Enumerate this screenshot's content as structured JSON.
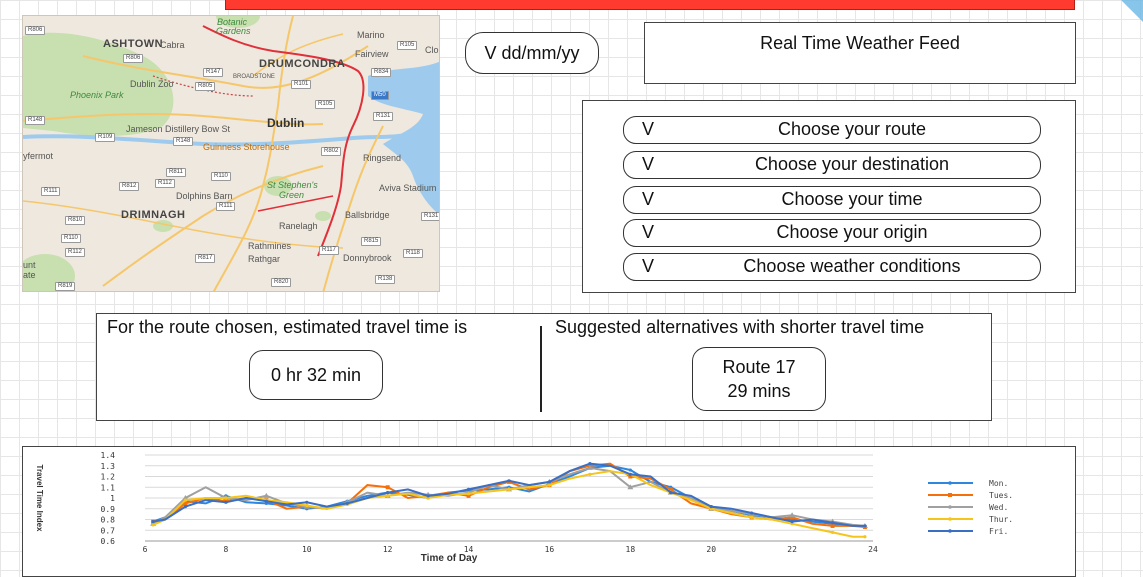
{
  "date_picker": {
    "value": "V dd/mm/yy"
  },
  "weather": {
    "title": "Real Time Weather Feed"
  },
  "selectors": [
    {
      "prefix": "V",
      "label": "Choose your route"
    },
    {
      "prefix": "V",
      "label": "Choose your destination"
    },
    {
      "prefix": "V",
      "label": "Choose your time"
    },
    {
      "prefix": "V",
      "label": "Choose your origin"
    },
    {
      "prefix": "V",
      "label": "Choose weather conditions"
    }
  ],
  "travel": {
    "estimate_label": "For the route chosen, estimated travel time is",
    "estimate_value": "0 hr 32 min",
    "alternatives_label": "Suggested alternatives with shorter travel time",
    "alternative_route": "Route 17",
    "alternative_time": "29 mins"
  },
  "map": {
    "labels": {
      "ashtown": "ASHTOWN",
      "cabra": "Cabra",
      "botanic": "Botanic",
      "gardens": "Gardens",
      "marino": "Marino",
      "fairview": "Fairview",
      "drumcondra": "DRUMCONDRA",
      "dublin_zoo": "Dublin Zoo",
      "phoenix_park": "Phoenix Park",
      "broadstone": "BROADSTONE",
      "dublin": "Dublin",
      "jameson": "Jameson Distillery Bow St",
      "guinness": "Guinness Storehouse",
      "ringsend": "Ringsend",
      "yfermot": "yfermot",
      "st_stephens": "St Stephen's",
      "green": "Green",
      "aviva": "Aviva Stadium",
      "dolphins_barn": "Dolphins Barn",
      "drimnagh": "DRIMNAGH",
      "ranelagh": "Ranelagh",
      "ballsbridge": "Ballsbridge",
      "rathmines": "Rathmines",
      "rathgar": "Rathgar",
      "donnybrook": "Donnybrook",
      "unt": "unt",
      "ate": "ate",
      "clon": "Clon"
    },
    "shields": [
      "R806",
      "R806",
      "R147",
      "R805",
      "R101",
      "R105",
      "R834",
      "M50",
      "R131",
      "R109",
      "R148",
      "R148",
      "R802",
      "R811",
      "R110",
      "R812",
      "R111",
      "R112",
      "R111",
      "R810",
      "R110",
      "R112",
      "R817",
      "R117",
      "R815",
      "R118",
      "R138",
      "R820",
      "R819",
      "R131",
      "R105"
    ]
  },
  "chart_data": {
    "type": "line",
    "title": "",
    "xlabel": "Time of Day",
    "ylabel": "Travel Time Index",
    "xlim": [
      6,
      24
    ],
    "ylim": [
      0.6,
      1.4
    ],
    "xticks": [
      6,
      8,
      10,
      12,
      14,
      16,
      18,
      20,
      22,
      24
    ],
    "yticks": [
      0.6,
      0.7,
      0.8,
      0.9,
      1,
      1.1,
      1.2,
      1.3,
      1.4
    ],
    "legend_position": "right",
    "grid": true,
    "series": [
      {
        "name": "Mon.",
        "color": "#2e86de",
        "x": [
          6.2,
          6.5,
          7,
          7.5,
          8,
          8.5,
          9,
          9.5,
          10,
          10.5,
          11,
          11.5,
          12,
          12.5,
          13,
          13.5,
          14,
          14.5,
          15,
          15.5,
          16,
          16.5,
          17,
          17.5,
          18,
          18.5,
          19,
          19.5,
          20,
          20.5,
          21,
          21.5,
          22,
          22.5,
          23,
          23.5,
          23.8
        ],
        "y": [
          0.78,
          0.82,
          0.97,
          0.95,
          1.02,
          0.96,
          0.95,
          0.93,
          0.9,
          0.92,
          0.97,
          1.02,
          1.05,
          1.03,
          1.0,
          1.05,
          1.07,
          1.08,
          1.1,
          1.06,
          1.13,
          1.2,
          1.28,
          1.3,
          1.26,
          1.15,
          1.1,
          1.0,
          0.92,
          0.88,
          0.84,
          0.82,
          0.8,
          0.78,
          0.76,
          0.74,
          0.74
        ]
      },
      {
        "name": "Tues.",
        "color": "#f5700a",
        "x": [
          6.2,
          6.5,
          7,
          7.5,
          8,
          8.5,
          9,
          9.5,
          10,
          10.5,
          11,
          11.5,
          12,
          12.5,
          13,
          13.5,
          14,
          14.5,
          15,
          15.5,
          16,
          16.5,
          17,
          17.5,
          18,
          18.5,
          19,
          19.5,
          20,
          20.5,
          21,
          21.5,
          22,
          22.5,
          23,
          23.5,
          23.8
        ],
        "y": [
          0.78,
          0.8,
          0.95,
          1.0,
          0.97,
          1.0,
          0.98,
          0.9,
          0.92,
          0.9,
          0.95,
          1.12,
          1.1,
          1.0,
          1.02,
          1.05,
          1.02,
          1.1,
          1.15,
          1.08,
          1.12,
          1.25,
          1.3,
          1.32,
          1.2,
          1.18,
          1.08,
          0.95,
          0.9,
          0.85,
          0.82,
          0.8,
          0.82,
          0.76,
          0.74,
          0.74,
          0.73
        ]
      },
      {
        "name": "Wed.",
        "color": "#a0a0a0",
        "x": [
          6.2,
          6.5,
          7,
          7.5,
          8,
          8.5,
          9,
          9.5,
          10,
          10.5,
          11,
          11.5,
          12,
          12.5,
          13,
          13.5,
          14,
          14.5,
          15,
          15.5,
          16,
          16.5,
          17,
          17.5,
          18,
          18.5,
          19,
          19.5,
          20,
          20.5,
          21,
          21.5,
          22,
          22.5,
          23,
          23.5,
          23.8
        ],
        "y": [
          0.76,
          0.82,
          1.0,
          1.1,
          1.0,
          0.98,
          1.02,
          0.95,
          0.92,
          0.9,
          0.96,
          1.05,
          1.02,
          1.05,
          1.03,
          1.02,
          1.05,
          1.12,
          1.08,
          1.12,
          1.15,
          1.22,
          1.28,
          1.25,
          1.1,
          1.15,
          1.05,
          1.0,
          0.9,
          0.88,
          0.85,
          0.82,
          0.84,
          0.8,
          0.78,
          0.75,
          0.74
        ]
      },
      {
        "name": "Thur.",
        "color": "#f6c51b",
        "x": [
          6.2,
          6.5,
          7,
          7.5,
          8,
          8.5,
          9,
          9.5,
          10,
          10.5,
          11,
          11.5,
          12,
          12.5,
          13,
          13.5,
          14,
          14.5,
          15,
          15.5,
          16,
          16.5,
          17,
          17.5,
          18,
          18.5,
          19,
          19.5,
          20,
          20.5,
          21,
          21.5,
          22,
          22.5,
          23,
          23.5,
          23.8
        ],
        "y": [
          0.75,
          0.8,
          0.98,
          1.0,
          1.0,
          1.02,
          0.98,
          0.96,
          0.93,
          0.9,
          0.94,
          1.0,
          1.02,
          1.04,
          1.0,
          1.03,
          1.04,
          1.06,
          1.08,
          1.1,
          1.12,
          1.18,
          1.22,
          1.25,
          1.22,
          1.12,
          1.05,
          0.98,
          0.9,
          0.86,
          0.82,
          0.8,
          0.76,
          0.72,
          0.68,
          0.64,
          0.64
        ]
      },
      {
        "name": "Fri.",
        "color": "#3b6fc4",
        "x": [
          6.2,
          6.5,
          7,
          7.5,
          8,
          8.5,
          9,
          9.5,
          10,
          10.5,
          11,
          11.5,
          12,
          12.5,
          13,
          13.5,
          14,
          14.5,
          15,
          15.5,
          16,
          16.5,
          17,
          17.5,
          18,
          18.5,
          19,
          19.5,
          20,
          20.5,
          21,
          21.5,
          22,
          22.5,
          23,
          23.5,
          23.8
        ],
        "y": [
          0.78,
          0.8,
          0.92,
          0.98,
          0.96,
          1.0,
          0.97,
          0.94,
          0.96,
          0.92,
          0.95,
          1.0,
          1.05,
          1.08,
          1.02,
          1.04,
          1.08,
          1.12,
          1.16,
          1.12,
          1.15,
          1.25,
          1.32,
          1.3,
          1.22,
          1.2,
          1.05,
          1.02,
          0.92,
          0.9,
          0.86,
          0.82,
          0.78,
          0.8,
          0.77,
          0.74,
          0.74
        ]
      }
    ]
  }
}
